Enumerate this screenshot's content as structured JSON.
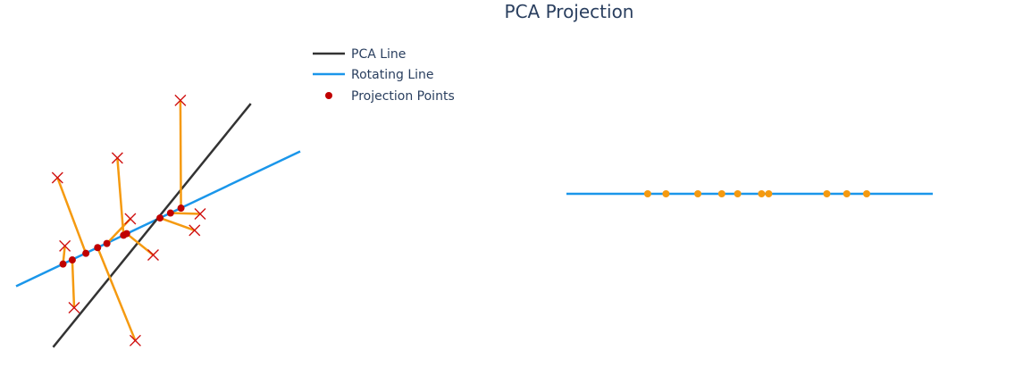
{
  "chart_data": {
    "type": "scatter",
    "title": "PCA Projection",
    "legend": {
      "placement": "top-left",
      "entries": [
        {
          "label": "PCA Line",
          "color": "#333333",
          "symbol": "line"
        },
        {
          "label": "Rotating Line",
          "color": "#1a96ea",
          "symbol": "line"
        },
        {
          "label": "Projection Points",
          "color": "#c00000",
          "symbol": "dot"
        }
      ]
    },
    "colors": {
      "pca_line": "#333333",
      "rotating_line": "#1a96ea",
      "projection_points": "#c00000",
      "original_points": "#d01010",
      "connectors": "#f59a10",
      "projected_1d_points": "#f59a10"
    },
    "left_panel": {
      "xlim": [
        -2.3,
        2.3
      ],
      "ylim": [
        -1.9,
        1.9
      ],
      "grid": false,
      "pca_line": [
        [
          -1.7,
          -1.56
        ],
        [
          1.5,
          1.4
        ]
      ],
      "rotating_line": [
        [
          -2.3,
          -0.82
        ],
        [
          2.3,
          0.82
        ]
      ],
      "original_points": [
        [
          -1.51,
          -0.33
        ],
        [
          -1.36,
          -1.08
        ],
        [
          -1.63,
          0.5
        ],
        [
          -0.37,
          -1.48
        ],
        [
          -0.45,
          0.0
        ],
        [
          -0.66,
          0.74
        ],
        [
          -0.08,
          -0.44
        ],
        [
          0.59,
          -0.14
        ],
        [
          0.68,
          0.06
        ],
        [
          0.36,
          1.44
        ]
      ],
      "projection_points": [
        [
          -1.54,
          -0.55
        ],
        [
          -1.39,
          -0.5
        ],
        [
          -1.17,
          -0.42
        ],
        [
          -0.98,
          -0.35
        ],
        [
          -0.83,
          -0.3
        ],
        [
          -0.56,
          -0.2
        ],
        [
          -0.51,
          -0.18
        ],
        [
          0.03,
          0.01
        ],
        [
          0.2,
          0.07
        ],
        [
          0.37,
          0.13
        ]
      ]
    },
    "right_panel": {
      "xlim": [
        -2.3,
        2.3
      ],
      "line_x": [
        -2.3,
        2.3
      ],
      "projected_1d": [
        -1.28,
        -1.05,
        -0.65,
        -0.35,
        -0.15,
        0.15,
        0.24,
        0.97,
        1.22,
        1.47
      ]
    }
  }
}
